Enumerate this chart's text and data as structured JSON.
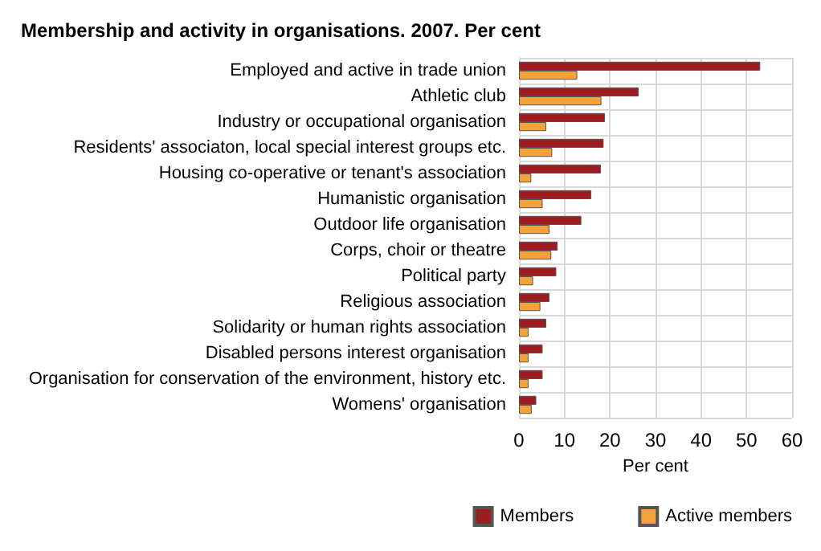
{
  "chart_data": {
    "type": "bar",
    "orientation": "horizontal",
    "title": "Membership and activity in organisations. 2007. Per cent",
    "xlabel": "Per cent",
    "categories": [
      "Employed and active in trade union",
      "Athletic club",
      "Industry or occupational organisation",
      "Residents' associaton, local special interest groups etc.",
      "Housing co-operative or tenant's association",
      "Humanistic organisation",
      "Outdoor life organisation",
      "Corps, choir or theatre",
      "Political party",
      "Religious association",
      "Solidarity or human rights association",
      "Disabled persons interest organisation",
      "Organisation for conservation of the environment, history etc.",
      "Womens' organisation"
    ],
    "series": [
      {
        "name": "Members",
        "color": "#9e1b20",
        "values": [
          53,
          26.3,
          18.9,
          18.6,
          18,
          15.9,
          13.7,
          8.5,
          8.2,
          6.7,
          6,
          5.2,
          5.2,
          3.8
        ]
      },
      {
        "name": "Active members",
        "color": "#f7a13a",
        "values": [
          12.8,
          18.1,
          6,
          7.3,
          2.7,
          5.2,
          6.7,
          7.1,
          3.1,
          4.7,
          2.1,
          2.1,
          2.1,
          2.8
        ]
      }
    ],
    "xlim": [
      0,
      60
    ],
    "xticks": [
      0,
      10,
      20,
      30,
      40,
      50,
      60
    ],
    "grid": true,
    "legend": "bottom"
  }
}
